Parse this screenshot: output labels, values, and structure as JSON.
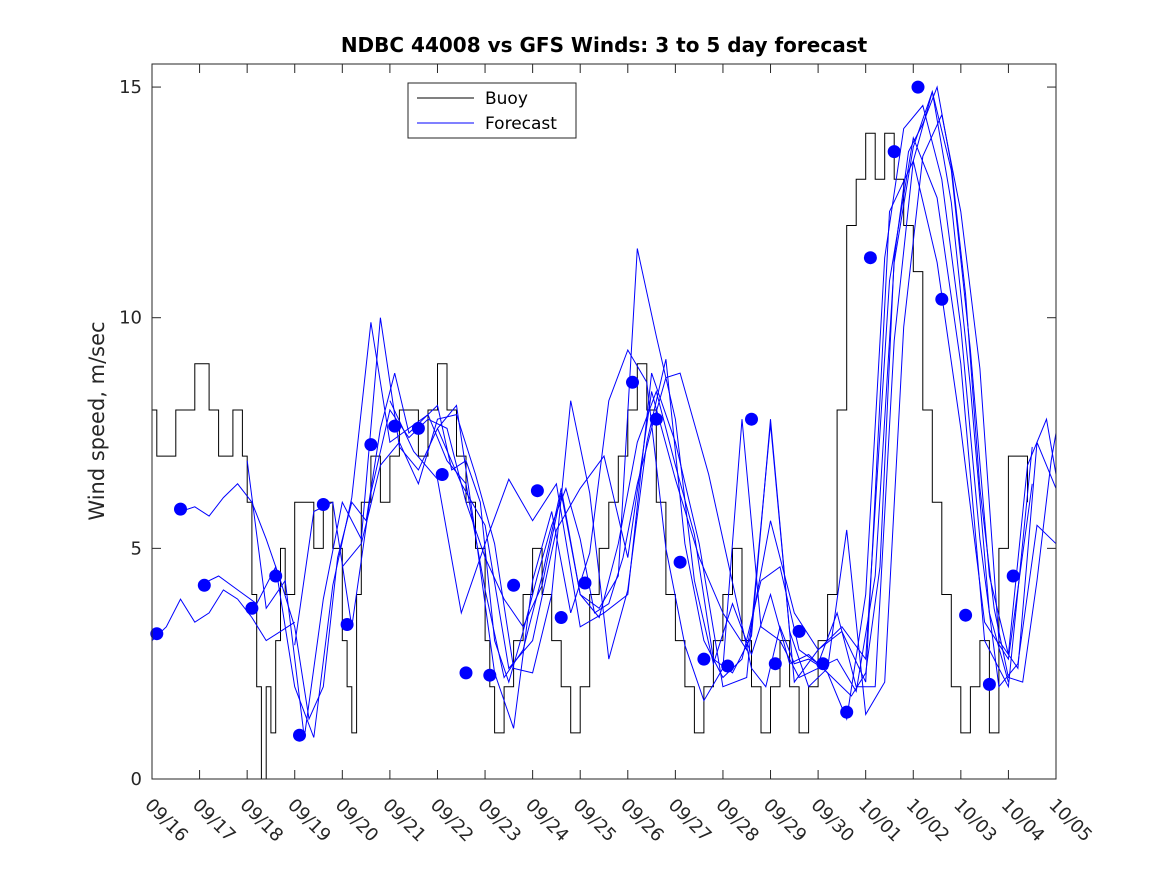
{
  "chart_data": {
    "type": "line",
    "title": "NDBC 44008 vs GFS Winds: 3 to 5 day forecast",
    "xlabel": "",
    "ylabel": "Wind speed, m/sec",
    "xlim": [
      0,
      19
    ],
    "ylim": [
      0,
      15.5
    ],
    "x_ticks": [
      0,
      1,
      2,
      3,
      4,
      5,
      6,
      7,
      8,
      9,
      10,
      11,
      12,
      13,
      14,
      15,
      16,
      17,
      18,
      19
    ],
    "x_tick_labels": [
      "09/16",
      "09/17",
      "09/18",
      "09/19",
      "09/20",
      "09/21",
      "09/22",
      "09/23",
      "09/24",
      "09/25",
      "09/26",
      "09/27",
      "09/28",
      "09/29",
      "09/30",
      "10/01",
      "10/02",
      "10/03",
      "10/04",
      "10/05"
    ],
    "y_ticks": [
      0,
      5,
      10,
      15
    ],
    "y_tick_labels": [
      "0",
      "5",
      "10",
      "15"
    ],
    "grid": false,
    "legend": {
      "position": "top-center",
      "entries": [
        "Buoy",
        "Forecast"
      ]
    },
    "series": [
      {
        "name": "Buoy",
        "color": "#000000",
        "style": "step",
        "x": [
          0,
          0.1,
          0.3,
          0.5,
          0.7,
          0.9,
          1.1,
          1.2,
          1.4,
          1.7,
          1.9,
          2.0,
          2.1,
          2.2,
          2.3,
          2.4,
          2.5,
          2.6,
          2.7,
          2.8,
          3.0,
          3.2,
          3.4,
          3.6,
          3.8,
          4.0,
          4.1,
          4.2,
          4.3,
          4.4,
          4.6,
          4.8,
          5.0,
          5.2,
          5.4,
          5.6,
          5.8,
          6.0,
          6.2,
          6.4,
          6.6,
          6.8,
          7.0,
          7.1,
          7.2,
          7.4,
          7.6,
          7.8,
          8.0,
          8.2,
          8.4,
          8.6,
          8.8,
          9.0,
          9.2,
          9.4,
          9.6,
          9.8,
          10.0,
          10.2,
          10.4,
          10.6,
          10.8,
          11.0,
          11.2,
          11.4,
          11.6,
          11.8,
          12.0,
          12.2,
          12.4,
          12.6,
          12.8,
          13.0,
          13.2,
          13.4,
          13.6,
          13.8,
          14.0,
          14.2,
          14.4,
          14.6,
          14.8,
          15.0,
          15.2,
          15.4,
          15.6,
          15.8,
          16.0,
          16.2,
          16.4,
          16.6,
          16.8,
          17.0,
          17.2,
          17.4,
          17.6,
          17.8,
          18.0,
          18.2,
          18.4
        ],
        "y": [
          8,
          7,
          7,
          8,
          8,
          9,
          9,
          8,
          7,
          8,
          7,
          6,
          4,
          2,
          0,
          2,
          1,
          3,
          5,
          4,
          6,
          6,
          5,
          6,
          5,
          3,
          2,
          1,
          4,
          6,
          7,
          6,
          7,
          8,
          8,
          7,
          8,
          9,
          8,
          7,
          6,
          5,
          3,
          2,
          1,
          2,
          3,
          4,
          5,
          4,
          3,
          2,
          1,
          2,
          4,
          5,
          6,
          7,
          8,
          9,
          8,
          6,
          4,
          3,
          2,
          1,
          2,
          3,
          4,
          5,
          3,
          2,
          1,
          2,
          3,
          2,
          1,
          2,
          3,
          4,
          8,
          12,
          13,
          14,
          13,
          14,
          13,
          12,
          11,
          8,
          6,
          4,
          2,
          1,
          2,
          3,
          1,
          5,
          7,
          7,
          6
        ]
      },
      {
        "name": "Forecast 1",
        "color": "#0000ff",
        "x": [
          0,
          0.3,
          0.6,
          0.9,
          1.2,
          1.5,
          1.8,
          2.1,
          2.4,
          2.7,
          3.0
        ],
        "y": [
          3.0,
          3.3,
          3.9,
          3.4,
          3.6,
          4.1,
          3.9,
          3.5,
          3.0,
          3.2,
          3.4
        ]
      },
      {
        "name": "Forecast 2",
        "color": "#0000ff",
        "x": [
          0.6,
          0.9,
          1.2,
          1.5,
          1.8,
          2.1,
          2.4,
          2.7,
          3.0,
          3.3,
          3.6,
          3.9,
          4.2,
          4.5,
          4.8,
          5.1,
          5.4,
          5.7,
          6.0,
          6.3,
          6.6,
          6.9,
          7.2,
          7.5,
          7.8,
          8.1,
          8.4,
          8.7,
          9.0,
          9.3,
          9.6,
          9.9,
          10.2,
          10.5,
          10.8,
          11.1,
          11.4,
          11.7,
          12.0,
          12.3,
          12.6,
          12.9,
          13.2,
          13.5,
          13.8,
          14.1,
          14.4,
          14.7,
          15.0,
          15.3,
          15.6,
          15.9,
          16.2,
          16.5,
          16.8,
          17.1,
          17.4,
          17.7,
          18.0,
          18.3,
          18.6,
          18.9,
          19.0
        ],
        "y": [
          5.8,
          5.9,
          5.7,
          6.1,
          6.4,
          6.0,
          5.2,
          4.3,
          3.3,
          1.3,
          2.0,
          4.8,
          6.0,
          5.6,
          7.6,
          8.8,
          7.5,
          7.8,
          8.1,
          6.7,
          6.9,
          6.0,
          3.0,
          2.1,
          3.2,
          4.4,
          5.5,
          6.3,
          5.2,
          3.6,
          3.8,
          4.8,
          6.4,
          7.6,
          8.7,
          8.8,
          7.7,
          6.6,
          5.2,
          3.8,
          2.4,
          2.0,
          3.3,
          2.5,
          2.6,
          2.4,
          2.1,
          1.8,
          2.3,
          4.6,
          11.3,
          13.6,
          14.2,
          15.0,
          13.3,
          10.5,
          6.3,
          3.7,
          2.2,
          2.1,
          4.3,
          6.9,
          7.5
        ]
      },
      {
        "name": "Forecast 3",
        "color": "#0000ff",
        "x": [
          1.0,
          1.4,
          1.8,
          2.2,
          2.6,
          3.0,
          3.4,
          3.8,
          4.2,
          4.6,
          5.0,
          5.4,
          5.8,
          6.2,
          6.6,
          7.0,
          7.4,
          7.8,
          8.2,
          8.6,
          9.0,
          9.4,
          9.8,
          10.2,
          10.6,
          11.0,
          11.4,
          11.8,
          12.2,
          12.6,
          13.0,
          13.4,
          13.8,
          14.2,
          14.6,
          15.0,
          15.4,
          15.8,
          16.2,
          16.6,
          17.0,
          17.4,
          17.8,
          18.2,
          18.6,
          19.0
        ],
        "y": [
          4.2,
          4.4,
          4.1,
          3.8,
          4.6,
          2.0,
          0.9,
          4.2,
          6.1,
          9.9,
          7.3,
          7.6,
          7.9,
          6.9,
          6.4,
          4.1,
          2.2,
          2.8,
          4.4,
          6.3,
          4.0,
          3.7,
          4.4,
          11.5,
          9.6,
          7.8,
          4.3,
          2.5,
          3.8,
          2.7,
          4.0,
          2.5,
          2.7,
          2.3,
          1.3,
          4.0,
          11.3,
          14.1,
          14.6,
          13.0,
          9.8,
          5.2,
          2.0,
          2.5,
          5.5,
          5.1
        ]
      },
      {
        "name": "Forecast 4",
        "color": "#0000ff",
        "x": [
          2.0,
          2.4,
          2.8,
          3.2,
          3.6,
          4.0,
          4.4,
          4.8,
          5.2,
          5.6,
          6.0,
          6.4,
          6.8,
          7.2,
          7.6,
          8.0,
          8.4,
          8.8,
          9.2,
          9.6,
          10.0,
          10.4,
          10.8,
          11.2,
          11.6,
          12.0,
          12.4,
          12.8,
          13.2,
          13.6,
          14.0,
          14.4,
          14.8,
          15.2,
          15.6,
          16.0,
          16.4,
          16.8,
          17.2,
          17.6,
          18.0
        ],
        "y": [
          6.9,
          3.7,
          4.3,
          0.9,
          3.9,
          6.0,
          5.2,
          10.0,
          7.2,
          6.7,
          7.6,
          8.1,
          5.3,
          2.3,
          1.1,
          4.3,
          5.8,
          3.6,
          4.9,
          8.2,
          9.3,
          8.6,
          5.0,
          2.9,
          1.7,
          2.4,
          7.8,
          3.3,
          3.0,
          2.2,
          2.4,
          2.6,
          1.9,
          4.4,
          11.2,
          13.7,
          14.9,
          12.5,
          8.5,
          3.6,
          2.1
        ]
      },
      {
        "name": "Forecast 5",
        "color": "#0000ff",
        "x": [
          3.0,
          3.4,
          3.8,
          4.2,
          4.6,
          5.0,
          5.4,
          5.8,
          6.2,
          6.6,
          7.0,
          7.4,
          7.8,
          8.2,
          8.6,
          9.0,
          9.4,
          9.8,
          10.2,
          10.6,
          11.0,
          11.4,
          11.8,
          12.2,
          12.6,
          13.0,
          13.4,
          13.8,
          14.2,
          14.6,
          15.0,
          15.4,
          15.8,
          16.2,
          16.6,
          17.0,
          17.4,
          17.8,
          18.2,
          18.6,
          19.0
        ],
        "y": [
          2.9,
          5.8,
          6.0,
          3.3,
          6.2,
          8.0,
          7.4,
          7.8,
          7.6,
          6.0,
          4.8,
          3.9,
          3.3,
          4.2,
          6.2,
          4.0,
          3.5,
          5.1,
          7.3,
          8.4,
          6.8,
          5.3,
          2.6,
          2.3,
          3.1,
          7.8,
          3.2,
          2.0,
          2.4,
          5.4,
          1.4,
          2.1,
          9.8,
          13.5,
          14.4,
          12.3,
          8.9,
          3.0,
          2.4,
          7.3,
          6.3
        ]
      },
      {
        "name": "Forecast 6",
        "color": "#0000ff",
        "x": [
          4.0,
          4.4,
          4.8,
          5.2,
          5.6,
          6.0,
          6.4,
          6.8,
          7.2,
          7.6,
          8.0,
          8.4,
          8.8,
          9.2,
          9.6,
          10.0,
          10.4,
          10.8,
          11.2,
          11.6,
          12.0,
          12.4,
          12.8,
          13.2,
          13.6,
          14.0,
          14.4,
          14.8,
          15.2,
          15.6,
          16.0,
          16.4,
          16.8,
          17.2,
          17.6,
          18.0,
          18.4,
          18.8,
          19.0
        ],
        "y": [
          4.6,
          5.1,
          6.8,
          7.3,
          6.4,
          7.8,
          7.9,
          6.6,
          5.1,
          2.4,
          2.3,
          4.0,
          8.2,
          6.2,
          2.6,
          4.1,
          7.3,
          9.1,
          5.1,
          3.0,
          2.2,
          2.6,
          4.3,
          4.6,
          2.8,
          2.5,
          3.6,
          2.0,
          2.0,
          9.5,
          13.4,
          14.9,
          13.2,
          9.3,
          4.4,
          2.7,
          6.8,
          7.8,
          6.6
        ]
      },
      {
        "name": "Forecast 7",
        "color": "#0000ff",
        "x": [
          5.0,
          5.5,
          6.0,
          6.5,
          7.0,
          7.5,
          8.0,
          8.5,
          9.0,
          9.5,
          10.0,
          10.5,
          11.0,
          11.5,
          12.0,
          12.5,
          13.0,
          13.5,
          14.0,
          14.5,
          15.0,
          15.5,
          16.0,
          16.5,
          17.0,
          17.5,
          18.0,
          18.5
        ],
        "y": [
          8.2,
          7.1,
          6.5,
          3.6,
          5.1,
          6.5,
          5.6,
          6.4,
          3.3,
          3.6,
          4.0,
          8.8,
          7.3,
          5.1,
          2.0,
          2.2,
          7.7,
          2.1,
          2.8,
          3.3,
          2.6,
          10.8,
          13.9,
          12.6,
          9.0,
          3.0,
          2.0,
          7.2
        ]
      },
      {
        "name": "Forecast 8",
        "color": "#0000ff",
        "x": [
          6.0,
          6.5,
          7.0,
          7.5,
          8.0,
          8.5,
          9.0,
          9.5,
          10.0,
          10.5,
          11.0,
          11.5,
          12.0,
          12.5,
          13.0,
          13.5,
          14.0,
          14.5,
          15.0,
          15.5,
          16.0,
          16.5,
          17.0,
          17.5,
          18.0,
          18.5
        ],
        "y": [
          7.6,
          6.4,
          5.5,
          2.4,
          3.0,
          5.4,
          6.3,
          7.0,
          4.8,
          8.4,
          6.5,
          4.8,
          3.6,
          2.8,
          5.6,
          3.6,
          2.8,
          3.2,
          2.1,
          12.3,
          13.4,
          11.2,
          7.6,
          3.4,
          2.6,
          6.4
        ]
      }
    ],
    "points": {
      "color": "#0000ff",
      "x": [
        0.1,
        0.6,
        1.1,
        2.1,
        2.6,
        3.1,
        3.6,
        4.1,
        4.6,
        5.1,
        5.6,
        6.1,
        6.6,
        7.1,
        7.6,
        8.1,
        8.6,
        9.1,
        10.1,
        10.6,
        11.1,
        11.6,
        12.1,
        12.6,
        13.1,
        13.6,
        14.1,
        14.6,
        15.1,
        15.6,
        16.1,
        16.6,
        17.1,
        17.6,
        18.1
      ],
      "y": [
        3.15,
        5.85,
        4.2,
        3.7,
        4.4,
        0.95,
        5.95,
        3.35,
        7.25,
        7.65,
        7.6,
        6.6,
        2.3,
        2.25,
        4.2,
        6.25,
        3.5,
        4.25,
        8.6,
        7.8,
        4.7,
        2.6,
        2.45,
        7.8,
        2.5,
        3.2,
        2.5,
        1.45,
        11.3,
        13.6,
        15.0,
        10.4,
        3.55,
        2.05,
        4.4
      ]
    }
  }
}
